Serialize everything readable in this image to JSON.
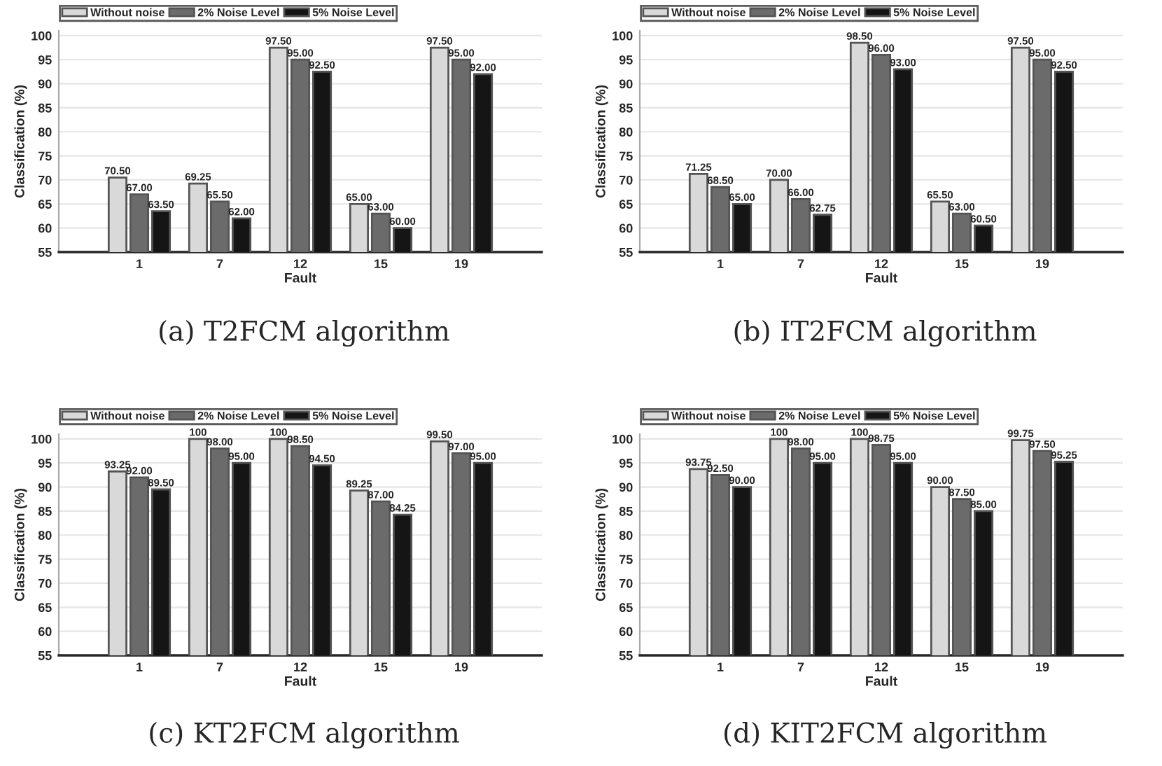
{
  "chart_data": [
    {
      "type": "bar",
      "xlabel": "Fault",
      "ylabel": "Classification (%)",
      "categories": [
        "1",
        "7",
        "12",
        "15",
        "19"
      ],
      "ylim": [
        55,
        101
      ],
      "yticks": [
        55,
        60,
        65,
        70,
        75,
        80,
        85,
        90,
        95,
        100
      ],
      "grid": "y",
      "legend": "top left",
      "annotations": [
        "(a) T2FCM algorithm"
      ],
      "series": [
        {
          "name": "Without noise",
          "color": "#d9d9d9",
          "values": [
            70.5,
            69.25,
            97.5,
            65.0,
            97.5
          ],
          "value_labels": [
            "70.50",
            "69.25",
            "97.50",
            "65.00",
            "97.50"
          ]
        },
        {
          "name": "2% Noise Level",
          "color": "#6b6b6b",
          "values": [
            67.0,
            65.5,
            95.0,
            63.0,
            95.0
          ],
          "value_labels": [
            "67.00",
            "65.50",
            "95.00",
            "63.00",
            "95.00"
          ]
        },
        {
          "name": "5% Noise Level",
          "color": "#151515",
          "values": [
            63.5,
            62.0,
            92.5,
            60.0,
            92.0
          ],
          "value_labels": [
            "63.50",
            "62.00",
            "92.50",
            "60.00",
            "92.00"
          ]
        }
      ]
    },
    {
      "type": "bar",
      "xlabel": "Fault",
      "ylabel": "Classification (%)",
      "categories": [
        "1",
        "7",
        "12",
        "15",
        "19"
      ],
      "ylim": [
        55,
        101
      ],
      "yticks": [
        55,
        60,
        65,
        70,
        75,
        80,
        85,
        90,
        95,
        100
      ],
      "grid": "y",
      "legend": "top left",
      "annotations": [
        "(b) IT2FCM algorithm"
      ],
      "series": [
        {
          "name": "Without noise",
          "color": "#d9d9d9",
          "values": [
            71.25,
            70.0,
            98.5,
            65.5,
            97.5
          ],
          "value_labels": [
            "71.25",
            "70.00",
            "98.50",
            "65.50",
            "97.50"
          ]
        },
        {
          "name": "2% Noise Level",
          "color": "#6b6b6b",
          "values": [
            68.5,
            66.0,
            96.0,
            63.0,
            95.0
          ],
          "value_labels": [
            "68.50",
            "66.00",
            "96.00",
            "63.00",
            "95.00"
          ]
        },
        {
          "name": "5% Noise Level",
          "color": "#151515",
          "values": [
            65.0,
            62.75,
            93.0,
            60.5,
            92.5
          ],
          "value_labels": [
            "65.00",
            "62.75",
            "93.00",
            "60.50",
            "92.50"
          ]
        }
      ]
    },
    {
      "type": "bar",
      "xlabel": "Fault",
      "ylabel": "Classification (%)",
      "categories": [
        "1",
        "7",
        "12",
        "15",
        "19"
      ],
      "ylim": [
        55,
        101
      ],
      "yticks": [
        55,
        60,
        65,
        70,
        75,
        80,
        85,
        90,
        95,
        100
      ],
      "grid": "y",
      "legend": "top left",
      "annotations": [
        "(c) KT2FCM algorithm"
      ],
      "series": [
        {
          "name": "Without noise",
          "color": "#d9d9d9",
          "values": [
            93.25,
            100,
            100,
            89.25,
            99.5
          ],
          "value_labels": [
            "93.25",
            "100",
            "100",
            "89.25",
            "99.50"
          ]
        },
        {
          "name": "2% Noise Level",
          "color": "#6b6b6b",
          "values": [
            92.0,
            98.0,
            98.5,
            87.0,
            97.0
          ],
          "value_labels": [
            "92.00",
            "98.00",
            "98.50",
            "87.00",
            "97.00"
          ]
        },
        {
          "name": "5% Noise Level",
          "color": "#151515",
          "values": [
            89.5,
            95.0,
            94.5,
            84.25,
            95.0
          ],
          "value_labels": [
            "89.50",
            "95.00",
            "94.50",
            "84.25",
            "95.00"
          ]
        }
      ]
    },
    {
      "type": "bar",
      "xlabel": "Fault",
      "ylabel": "Classification (%)",
      "categories": [
        "1",
        "7",
        "12",
        "15",
        "19"
      ],
      "ylim": [
        55,
        101
      ],
      "yticks": [
        55,
        60,
        65,
        70,
        75,
        80,
        85,
        90,
        95,
        100
      ],
      "grid": "y",
      "legend": "top left",
      "annotations": [
        "(d) KIT2FCM algorithm"
      ],
      "series": [
        {
          "name": "Without noise",
          "color": "#d9d9d9",
          "values": [
            93.75,
            100,
            100,
            90.0,
            99.75
          ],
          "value_labels": [
            "93.75",
            "100",
            "100",
            "90.00",
            "99.75"
          ]
        },
        {
          "name": "2% Noise Level",
          "color": "#6b6b6b",
          "values": [
            92.5,
            98.0,
            98.75,
            87.5,
            97.5
          ],
          "value_labels": [
            "92.50",
            "98.00",
            "98.75",
            "87.50",
            "97.50"
          ]
        },
        {
          "name": "5% Noise Level",
          "color": "#151515",
          "values": [
            90.0,
            95.0,
            95.0,
            85.0,
            95.25
          ],
          "value_labels": [
            "90.00",
            "95.00",
            "95.00",
            "85.00",
            "95.25"
          ]
        }
      ]
    }
  ]
}
